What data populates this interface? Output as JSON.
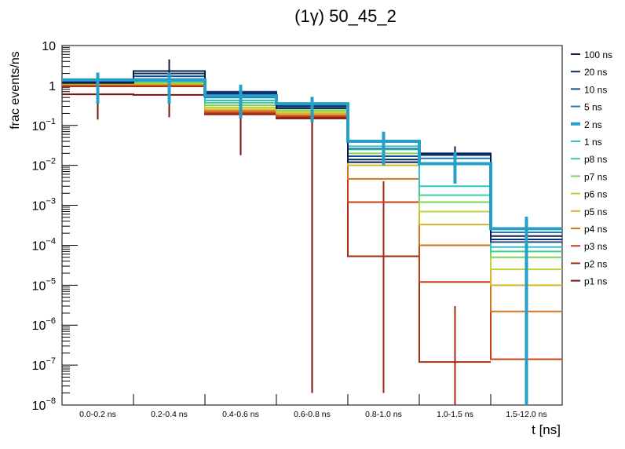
{
  "chart_data": {
    "type": "line",
    "title": "(1γ) 50_45_2",
    "xlabel": "t [ns]",
    "ylabel": "frac events/ns",
    "yscale": "log",
    "ylim": [
      1e-08,
      10
    ],
    "y_ticks": [
      {
        "value": 10,
        "base": "10",
        "exp": ""
      },
      {
        "value": 1,
        "base": "1",
        "exp": ""
      },
      {
        "value": 0.1,
        "base": "10",
        "exp": "−1"
      },
      {
        "value": 0.01,
        "base": "10",
        "exp": "−2"
      },
      {
        "value": 0.001,
        "base": "10",
        "exp": "−3"
      },
      {
        "value": 0.0001,
        "base": "10",
        "exp": "−4"
      },
      {
        "value": 1e-05,
        "base": "10",
        "exp": "−5"
      },
      {
        "value": 1e-06,
        "base": "10",
        "exp": "−6"
      },
      {
        "value": 1e-07,
        "base": "10",
        "exp": "−7"
      },
      {
        "value": 1e-08,
        "base": "10",
        "exp": "−8"
      }
    ],
    "categories": [
      "0.0-0.2 ns",
      "0.2-0.4 ns",
      "0.4-0.6 ns",
      "0.6-0.8 ns",
      "0.8-1.0 ns",
      "1.0-1.5 ns",
      "1.5-12.0 ns"
    ],
    "grid": false,
    "legend_position": "right",
    "highlight_series": "2 ns",
    "series": [
      {
        "name": "100 ns",
        "color": "#0d1b4c",
        "values": [
          1.15,
          2.3,
          0.6,
          0.27,
          0.012,
          0.02,
          0.00017
        ],
        "errors": [
          null,
          [
            0.9,
            4.5
          ],
          null,
          null,
          null,
          [
            0.01,
            0.03
          ],
          null
        ]
      },
      {
        "name": "20 ns",
        "color": "#0a2d6e",
        "values": [
          1.25,
          2.0,
          0.66,
          0.3,
          0.014,
          0.019,
          0.00014
        ],
        "errors": [
          null,
          null,
          null,
          null,
          null,
          null,
          null
        ]
      },
      {
        "name": "10 ns",
        "color": "#1a4e8f",
        "values": [
          1.3,
          1.7,
          0.7,
          0.32,
          0.017,
          0.018,
          0.00012
        ],
        "errors": [
          null,
          null,
          null,
          null,
          null,
          null,
          null
        ]
      },
      {
        "name": "5 ns",
        "color": "#1f77b4",
        "values": [
          1.35,
          1.45,
          0.5,
          0.33,
          0.026,
          0.015,
          0.00021
        ],
        "errors": [
          null,
          null,
          null,
          null,
          null,
          null,
          null
        ]
      },
      {
        "name": "2 ns",
        "color": "#26a0c8",
        "values": [
          1.38,
          1.38,
          0.55,
          0.35,
          0.04,
          0.011,
          0.00026
        ],
        "errors": [
          [
            0.35,
            2.1
          ],
          [
            0.35,
            2.1
          ],
          [
            0.15,
            1.05
          ],
          [
            0.12,
            0.52
          ],
          [
            0.01,
            0.07
          ],
          [
            0.0035,
            0.022
          ],
          [
            1e-08,
            0.00052
          ]
        ]
      },
      {
        "name": "1 ns",
        "color": "#2ec4c4",
        "values": [
          1.3,
          1.3,
          0.42,
          0.3,
          0.03,
          0.003,
          9e-05
        ],
        "errors": [
          null,
          null,
          null,
          null,
          null,
          null,
          null
        ]
      },
      {
        "name": "p8 ns",
        "color": "#3ccf8a",
        "values": [
          1.25,
          1.25,
          0.37,
          0.27,
          0.025,
          0.0018,
          7e-05
        ],
        "errors": [
          null,
          null,
          null,
          null,
          null,
          null,
          null
        ]
      },
      {
        "name": "p7 ns",
        "color": "#7fd35a",
        "values": [
          1.2,
          1.2,
          0.32,
          0.24,
          0.02,
          0.0012,
          5e-05
        ],
        "errors": [
          null,
          null,
          null,
          null,
          null,
          null,
          null
        ]
      },
      {
        "name": "p6 ns",
        "color": "#bcd43a",
        "values": [
          1.15,
          1.15,
          0.28,
          0.22,
          0.014,
          0.0007,
          2.5e-05
        ],
        "errors": [
          null,
          null,
          null,
          null,
          null,
          null,
          null
        ]
      },
      {
        "name": "p5 ns",
        "color": "#d4b82a",
        "values": [
          1.1,
          1.1,
          0.25,
          0.2,
          0.01,
          0.00033,
          1e-05
        ],
        "errors": [
          null,
          null,
          null,
          null,
          null,
          null,
          null
        ]
      },
      {
        "name": "p4 ns",
        "color": "#d4761e",
        "values": [
          1.05,
          1.05,
          0.23,
          0.19,
          0.0046,
          0.0001,
          2.2e-06
        ],
        "errors": [
          null,
          null,
          null,
          null,
          null,
          null,
          null
        ]
      },
      {
        "name": "p3 ns",
        "color": "#c93e16",
        "values": [
          1.0,
          1.0,
          0.21,
          0.17,
          0.0012,
          1.2e-05,
          1.4e-07
        ],
        "errors": [
          null,
          null,
          null,
          null,
          null,
          null,
          null
        ]
      },
      {
        "name": "p2 ns",
        "color": "#a52a10",
        "values": [
          0.95,
          0.95,
          0.2,
          0.16,
          5.3e-05,
          1.2e-07,
          null
        ],
        "errors": [
          null,
          null,
          null,
          null,
          [
            2e-08,
            0.004
          ],
          [
            1e-08,
            3e-06
          ],
          null
        ]
      },
      {
        "name": "p1 ns",
        "color": "#7a1008",
        "values": [
          0.6,
          0.58,
          0.19,
          0.15,
          null,
          null,
          null
        ],
        "errors": [
          [
            0.14,
            1.1
          ],
          [
            0.16,
            1.0
          ],
          [
            0.018,
            0.4
          ],
          [
            2e-08,
            0.3
          ],
          null,
          null,
          null
        ]
      }
    ]
  }
}
